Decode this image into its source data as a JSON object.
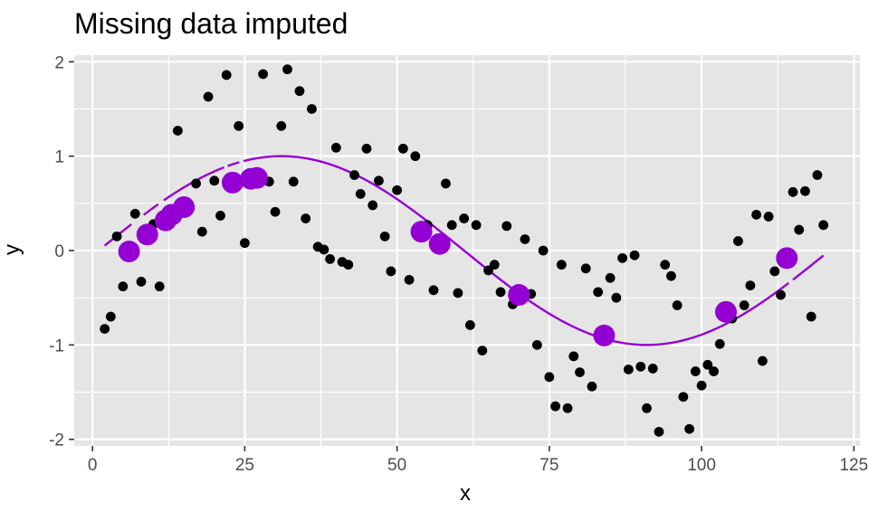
{
  "chart_data": {
    "type": "scatter",
    "title": "Missing data imputed",
    "xlabel": "x",
    "ylabel": "y",
    "xlim": [
      -3,
      126
    ],
    "ylim": [
      -2.07,
      2.07
    ],
    "x_ticks": [
      0,
      25,
      50,
      75,
      100,
      125
    ],
    "y_ticks": [
      -2,
      -1,
      0,
      1,
      2
    ],
    "x_tick_labels": [
      "0",
      "25",
      "50",
      "75",
      "100",
      "125"
    ],
    "y_tick_labels": [
      "-2",
      "-1",
      "0",
      "1",
      "2"
    ],
    "grid": true,
    "colors": {
      "panel": "#e5e5e5",
      "grid_major": "#ffffff",
      "points": "#000000",
      "imputed": "#9400d3",
      "curve": "#9400d3",
      "tick_text": "#4d4d4d"
    },
    "observed": [
      [
        2,
        -0.83
      ],
      [
        3,
        -0.7
      ],
      [
        4,
        0.15
      ],
      [
        5,
        -0.38
      ],
      [
        7,
        0.39
      ],
      [
        8,
        -0.33
      ],
      [
        10,
        0.28
      ],
      [
        11,
        -0.38
      ],
      [
        14,
        1.27
      ],
      [
        16,
        0.45
      ],
      [
        17,
        0.71
      ],
      [
        18,
        0.2
      ],
      [
        19,
        1.63
      ],
      [
        20,
        0.74
      ],
      [
        21,
        0.37
      ],
      [
        22,
        1.86
      ],
      [
        24,
        1.32
      ],
      [
        25,
        0.08
      ],
      [
        28,
        1.87
      ],
      [
        29,
        0.73
      ],
      [
        30,
        0.41
      ],
      [
        31,
        1.32
      ],
      [
        32,
        1.92
      ],
      [
        33,
        0.73
      ],
      [
        34,
        1.69
      ],
      [
        35,
        0.34
      ],
      [
        36,
        1.5
      ],
      [
        37,
        0.04
      ],
      [
        38,
        0.01
      ],
      [
        39,
        -0.09
      ],
      [
        40,
        1.09
      ],
      [
        41,
        -0.12
      ],
      [
        42,
        -0.15
      ],
      [
        43,
        0.8
      ],
      [
        44,
        0.6
      ],
      [
        45,
        1.08
      ],
      [
        46,
        0.48
      ],
      [
        47,
        0.74
      ],
      [
        48,
        0.15
      ],
      [
        49,
        -0.22
      ],
      [
        50,
        0.64
      ],
      [
        51,
        1.08
      ],
      [
        52,
        -0.31
      ],
      [
        53,
        1.0
      ],
      [
        55,
        0.27
      ],
      [
        56,
        -0.42
      ],
      [
        58,
        0.71
      ],
      [
        59,
        0.27
      ],
      [
        60,
        -0.45
      ],
      [
        61,
        0.34
      ],
      [
        62,
        -0.79
      ],
      [
        63,
        0.27
      ],
      [
        64,
        -1.06
      ],
      [
        65,
        -0.21
      ],
      [
        66,
        -0.15
      ],
      [
        67,
        -0.44
      ],
      [
        68,
        0.26
      ],
      [
        69,
        -0.57
      ],
      [
        71,
        0.12
      ],
      [
        72,
        -0.46
      ],
      [
        73,
        -1.0
      ],
      [
        74,
        0.0
      ],
      [
        75,
        -1.34
      ],
      [
        76,
        -1.65
      ],
      [
        77,
        -0.15
      ],
      [
        78,
        -1.67
      ],
      [
        79,
        -1.12
      ],
      [
        80,
        -1.29
      ],
      [
        81,
        -0.19
      ],
      [
        82,
        -1.44
      ],
      [
        83,
        -0.44
      ],
      [
        85,
        -0.29
      ],
      [
        86,
        -0.5
      ],
      [
        87,
        -0.08
      ],
      [
        88,
        -1.26
      ],
      [
        89,
        -0.05
      ],
      [
        90,
        -1.23
      ],
      [
        91,
        -1.67
      ],
      [
        92,
        -1.25
      ],
      [
        93,
        -1.92
      ],
      [
        94,
        -0.15
      ],
      [
        95,
        -0.27
      ],
      [
        96,
        -0.58
      ],
      [
        97,
        -1.55
      ],
      [
        98,
        -1.89
      ],
      [
        99,
        -1.28
      ],
      [
        100,
        -1.43
      ],
      [
        101,
        -1.21
      ],
      [
        102,
        -1.28
      ],
      [
        103,
        -0.99
      ],
      [
        105,
        -0.72
      ],
      [
        106,
        0.1
      ],
      [
        107,
        -0.58
      ],
      [
        108,
        -0.37
      ],
      [
        109,
        0.38
      ],
      [
        110,
        -1.17
      ],
      [
        111,
        0.36
      ],
      [
        112,
        -0.22
      ],
      [
        113,
        -0.47
      ],
      [
        115,
        0.62
      ],
      [
        116,
        0.22
      ],
      [
        117,
        0.63
      ],
      [
        118,
        -0.7
      ],
      [
        119,
        0.8
      ],
      [
        120,
        0.27
      ]
    ],
    "imputed": [
      [
        6,
        -0.01
      ],
      [
        9,
        0.17
      ],
      [
        12,
        0.32
      ],
      [
        13,
        0.38
      ],
      [
        15,
        0.46
      ],
      [
        23,
        0.72
      ],
      [
        26,
        0.76
      ],
      [
        27,
        0.77
      ],
      [
        54,
        0.2
      ],
      [
        57,
        0.07
      ],
      [
        70,
        -0.47
      ],
      [
        84,
        -0.9
      ],
      [
        104,
        -0.65
      ],
      [
        114,
        -0.08
      ]
    ],
    "curve": {
      "x_from": 2,
      "x_to": 120,
      "function": "sin(2*pi*(x-1)/120)",
      "gaps": [
        [
          6.4,
          8.3
        ],
        [
          10.8,
          11.6
        ],
        [
          21.7,
          22.2
        ],
        [
          24.2,
          24.8
        ],
        [
          114.3,
          114.9
        ]
      ]
    }
  }
}
